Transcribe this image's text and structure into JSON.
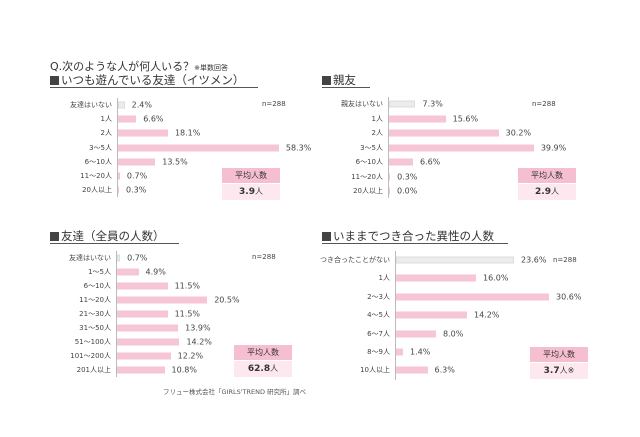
{
  "question": "Q.次のような人が何人いる？",
  "question_note": "※単数回答",
  "footer": "フリュー株式会社「GIRLS'TREND 研究所」調べ",
  "colors": {
    "bar": "#f7c6d4",
    "none_bar": "#ececec",
    "avg_header": "#f6bfd0",
    "avg_value": "#fde8ef"
  },
  "chart_data": [
    {
      "type": "bar",
      "orientation": "horizontal",
      "title": "いつも遊んでいる友達（イツメン）",
      "n_label": "n=288",
      "categories": [
        "友達はいない",
        "1人",
        "2人",
        "3〜5人",
        "6〜10人",
        "11〜20人",
        "20人以上"
      ],
      "values": [
        2.4,
        6.6,
        18.1,
        58.3,
        13.5,
        0.7,
        0.3
      ],
      "value_labels": [
        "2.4%",
        "6.6%",
        "18.1%",
        "58.3%",
        "13.5%",
        "0.7%",
        "0.3%"
      ],
      "avg_header": "平均人数",
      "avg_number": "3.9",
      "avg_unit": "人"
    },
    {
      "type": "bar",
      "orientation": "horizontal",
      "title": "親友",
      "n_label": "n=288",
      "categories": [
        "親友はいない",
        "1人",
        "2人",
        "3〜5人",
        "6〜10人",
        "11〜20人",
        "20人以上"
      ],
      "values": [
        7.3,
        15.6,
        30.2,
        39.9,
        6.6,
        0.3,
        0.0
      ],
      "value_labels": [
        "7.3%",
        "15.6%",
        "30.2%",
        "39.9%",
        "6.6%",
        "0.3%",
        "0.0%"
      ],
      "avg_header": "平均人数",
      "avg_number": "2.9",
      "avg_unit": "人"
    },
    {
      "type": "bar",
      "orientation": "horizontal",
      "title": "友達（全員の人数）",
      "n_label": "n=288",
      "categories": [
        "友達はいない",
        "1〜5人",
        "6〜10人",
        "11〜20人",
        "21〜30人",
        "31〜50人",
        "51〜100人",
        "101〜200人",
        "201人以上"
      ],
      "values": [
        0.7,
        4.9,
        11.5,
        20.5,
        11.5,
        13.9,
        14.2,
        12.2,
        10.8
      ],
      "value_labels": [
        "0.7%",
        "4.9%",
        "11.5%",
        "20.5%",
        "11.5%",
        "13.9%",
        "14.2%",
        "12.2%",
        "10.8%"
      ],
      "avg_header": "平均人数",
      "avg_number": "62.8",
      "avg_unit": "人"
    },
    {
      "type": "bar",
      "orientation": "horizontal",
      "title": "いままでつき合った異性の人数",
      "n_label": "n=288",
      "categories": [
        "つき合ったことがない",
        "1人",
        "2〜3人",
        "4〜5人",
        "6〜7人",
        "8〜9人",
        "10人以上"
      ],
      "values": [
        23.6,
        16.0,
        30.6,
        14.2,
        8.0,
        1.4,
        6.3
      ],
      "value_labels": [
        "23.6%",
        "16.0%",
        "30.6%",
        "14.2%",
        "8.0%",
        "1.4%",
        "6.3%"
      ],
      "avg_header": "平均人数",
      "avg_number": "3.7",
      "avg_unit": "人※"
    }
  ]
}
